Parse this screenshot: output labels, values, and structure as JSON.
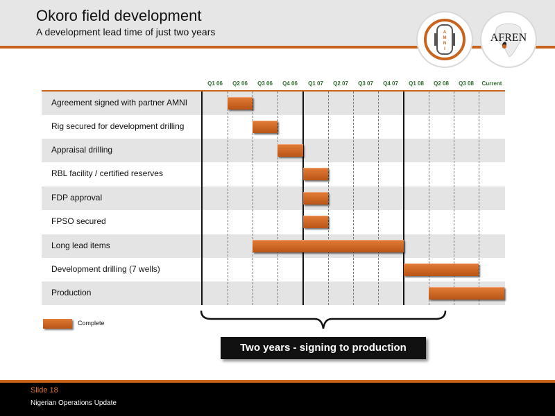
{
  "header": {
    "title": "Okoro field development",
    "subtitle": "A development lead time of just two years"
  },
  "logos": {
    "amni_text": "AMNI",
    "afren_text": "AFREN"
  },
  "colors": {
    "accent": "#c8641e",
    "bar": "#c8641e",
    "quarter_label": "#2f6b2f",
    "row_shade": "#e4e4e4",
    "footer_bg": "#000000"
  },
  "chart_data": {
    "type": "gantt",
    "periods": [
      "Q1 06",
      "Q2 06",
      "Q3 06",
      "Q4 06",
      "Q1 07",
      "Q2 07",
      "Q3 07",
      "Q4 07",
      "Q1 08",
      "Q2 08",
      "Q3 08",
      "Current"
    ],
    "tasks": [
      {
        "label": "Agreement signed with partner AMNI",
        "start": "Q2 06",
        "end": "Q2 06"
      },
      {
        "label": "Rig secured for development drilling",
        "start": "Q3 06",
        "end": "Q3 06"
      },
      {
        "label": "Appraisal drilling",
        "start": "Q4 06",
        "end": "Q4 06"
      },
      {
        "label": "RBL facility / certified reserves",
        "start": "Q1 07",
        "end": "Q1 07"
      },
      {
        "label": "FDP approval",
        "start": "Q1 07",
        "end": "Q1 07"
      },
      {
        "label": "FPSO secured",
        "start": "Q1 07",
        "end": "Q1 07"
      },
      {
        "label": "Long lead items",
        "start": "Q3 06",
        "end": "Q4 07"
      },
      {
        "label": "Development drilling (7 wells)",
        "start": "Q1 08",
        "end": "Q3 08"
      },
      {
        "label": "Production",
        "start": "Q2 08",
        "end": "Current"
      }
    ],
    "legend": [
      {
        "label": "Complete"
      }
    ]
  },
  "callout": "Two years -  signing to production",
  "footer": {
    "slide": "Slide 18",
    "text": "Nigerian Operations Update"
  }
}
